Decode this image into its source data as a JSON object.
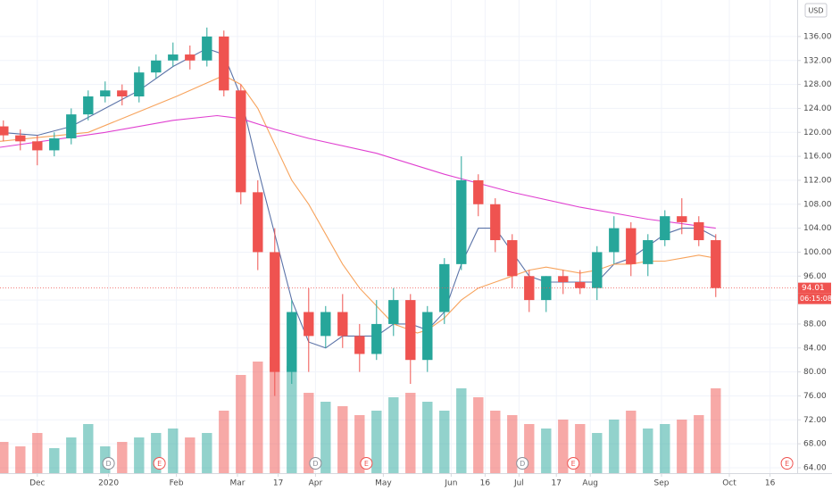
{
  "chart_data": {
    "type": "candlestick",
    "currency": "USD",
    "up_color": "#26a69a",
    "down_color": "#ef5350",
    "grid": true,
    "xlim": [
      -11,
      224
    ],
    "ylim": [
      63.1,
      142.1
    ],
    "xticks": [
      {
        "value": 0,
        "label": "Dec"
      },
      {
        "value": 21,
        "label": "2020"
      },
      {
        "value": 41,
        "label": "Feb"
      },
      {
        "value": 59,
        "label": "Mar"
      },
      {
        "value": 71,
        "label": "17"
      },
      {
        "value": 82,
        "label": "Apr"
      },
      {
        "value": 102,
        "label": "May"
      },
      {
        "value": 122,
        "label": "Jun"
      },
      {
        "value": 132,
        "label": "16"
      },
      {
        "value": 142,
        "label": "Jul"
      },
      {
        "value": 153,
        "label": "17"
      },
      {
        "value": 163,
        "label": "Aug"
      },
      {
        "value": 184,
        "label": "Sep"
      },
      {
        "value": 204,
        "label": "Oct"
      },
      {
        "value": 216,
        "label": "16"
      }
    ],
    "yticks": [
      {
        "value": 64,
        "label": "64.00"
      },
      {
        "value": 68,
        "label": "68.00"
      },
      {
        "value": 72,
        "label": "72.00"
      },
      {
        "value": 76,
        "label": "76.00"
      },
      {
        "value": 80,
        "label": "80.00"
      },
      {
        "value": 84,
        "label": "84.00"
      },
      {
        "value": 88,
        "label": "88.00"
      },
      {
        "value": 92,
        "label": "92.00"
      },
      {
        "value": 96,
        "label": "96.00"
      },
      {
        "value": 100,
        "label": "100.00"
      },
      {
        "value": 104,
        "label": "104.00"
      },
      {
        "value": 108,
        "label": "108.00"
      },
      {
        "value": 112,
        "label": "112.00"
      },
      {
        "value": 116,
        "label": "116.00"
      },
      {
        "value": 120,
        "label": "120.00"
      },
      {
        "value": 124,
        "label": "124.00"
      },
      {
        "value": 128,
        "label": "128.00"
      },
      {
        "value": 132,
        "label": "132.00"
      },
      {
        "value": 136,
        "label": "136.00"
      }
    ],
    "candles": {
      "x": [
        -10,
        -5,
        0,
        5,
        10,
        15,
        20,
        25,
        30,
        35,
        40,
        45,
        50,
        55,
        60,
        65,
        70,
        75,
        80,
        85,
        90,
        95,
        100,
        105,
        110,
        115,
        120,
        125,
        130,
        135,
        140,
        145,
        150,
        155,
        160,
        165,
        170,
        175,
        180,
        185,
        190,
        195,
        200
      ],
      "open": [
        121,
        119.5,
        118.5,
        117,
        119,
        123,
        126,
        127,
        126,
        130,
        132,
        133,
        132,
        136,
        127,
        110,
        100,
        80,
        90,
        86,
        90,
        86,
        83,
        88,
        92,
        82,
        90,
        98,
        112,
        108,
        102,
        96,
        92,
        96,
        95,
        94,
        100,
        104,
        98,
        102,
        106,
        105,
        102
      ],
      "high": [
        122,
        120.5,
        119.5,
        120,
        124,
        127,
        128.5,
        128,
        131,
        133,
        135,
        134.5,
        137.5,
        137,
        128,
        112,
        104,
        92,
        94,
        91,
        93,
        88,
        92,
        94,
        93,
        91,
        99,
        116,
        113,
        109,
        103,
        97,
        96,
        97,
        97,
        101,
        106,
        105,
        103,
        107,
        109,
        106,
        103
      ],
      "low": [
        118.5,
        117,
        114.5,
        116,
        118,
        122,
        125,
        124.5,
        125,
        129,
        131,
        130.5,
        131,
        126,
        108,
        97,
        76,
        78,
        80,
        84,
        84,
        80,
        82,
        86,
        78,
        80,
        88,
        97,
        106,
        100,
        94,
        90,
        90,
        93,
        93,
        92,
        98,
        96,
        96,
        101,
        103,
        101,
        92.5
      ],
      "close": [
        119.5,
        118.5,
        117,
        119,
        123,
        126,
        127,
        126,
        130,
        132,
        133,
        132,
        136,
        127,
        110,
        100,
        80,
        90,
        86,
        90,
        86,
        83,
        88,
        92,
        82,
        90,
        98,
        112,
        108,
        102,
        96,
        92,
        96,
        95,
        94,
        100,
        104,
        98,
        102,
        106,
        105,
        102,
        94
      ],
      "volume": [
        35,
        30,
        45,
        28,
        40,
        55,
        30,
        35,
        40,
        45,
        50,
        40,
        45,
        70,
        110,
        125,
        130,
        120,
        90,
        80,
        75,
        65,
        70,
        85,
        90,
        80,
        70,
        95,
        85,
        70,
        65,
        55,
        50,
        60,
        55,
        45,
        60,
        70,
        50,
        55,
        60,
        65,
        95
      ]
    },
    "moving_averages": [
      {
        "color": "#5b73a8",
        "x": [
          -11,
          0,
          10,
          20,
          30,
          40,
          50,
          55,
          60,
          65,
          70,
          75,
          80,
          85,
          90,
          95,
          100,
          105,
          110,
          115,
          120,
          125,
          130,
          135,
          140,
          145,
          150,
          155,
          160,
          165,
          170,
          175,
          180,
          185,
          190,
          195,
          200
        ],
        "values": [
          120,
          119.5,
          121,
          124,
          127,
          131,
          134,
          133,
          126,
          114,
          103,
          92,
          85,
          84,
          86,
          86,
          86,
          88,
          88,
          87,
          90,
          98,
          104,
          104,
          100,
          96,
          95,
          95,
          95,
          95,
          98,
          99,
          101,
          103,
          104,
          104,
          102.5
        ]
      },
      {
        "color": "#f7a35c",
        "x": [
          -11,
          15,
          41,
          55,
          60,
          65,
          70,
          75,
          80,
          85,
          90,
          95,
          100,
          105,
          110,
          112,
          115,
          120,
          125,
          130,
          135,
          140,
          145,
          150,
          155,
          160,
          165,
          170,
          175,
          180,
          185,
          190,
          195,
          200
        ],
        "values": [
          118.5,
          120,
          126,
          129.5,
          128,
          124,
          118,
          112,
          108,
          103,
          98,
          94,
          91,
          88,
          87,
          86.5,
          87,
          89,
          92,
          94,
          95,
          96,
          97,
          97.5,
          97,
          96.5,
          97,
          98,
          98,
          98.5,
          98.5,
          99,
          99.5,
          99
        ]
      },
      {
        "color": "#e040d0",
        "x": [
          -11,
          20,
          40,
          53,
          60,
          70,
          80,
          100,
          120,
          140,
          160,
          180,
          200
        ],
        "values": [
          117.5,
          120,
          122,
          122.8,
          122.3,
          120.5,
          119,
          116.5,
          113,
          110,
          107.5,
          105.5,
          104
        ]
      }
    ],
    "last_price": {
      "value": 94.01,
      "label": "94.01",
      "countdown": "06:15:08"
    },
    "events": [
      {
        "x": 21,
        "label": "D"
      },
      {
        "x": 36,
        "label": "E"
      },
      {
        "x": 82,
        "label": "D"
      },
      {
        "x": 97,
        "label": "E"
      },
      {
        "x": 143,
        "label": "D"
      },
      {
        "x": 158,
        "label": "E"
      },
      {
        "x": 221,
        "label": "E"
      }
    ]
  }
}
